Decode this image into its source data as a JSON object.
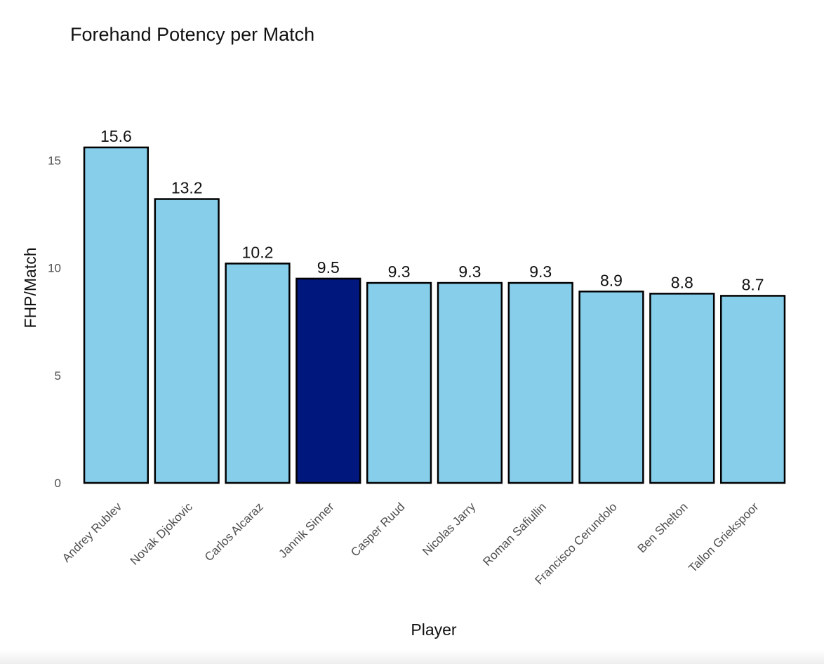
{
  "chart_data": {
    "type": "bar",
    "title": "Forehand Potency per Match",
    "xlabel": "Player",
    "ylabel": "FHP/Match",
    "ylim": [
      0,
      16.5
    ],
    "yticks": [
      0,
      5,
      10,
      15
    ],
    "grid": false,
    "legend": "none",
    "categories": [
      "Andrey Rublev",
      "Novak Djokovic",
      "Carlos Alcaraz",
      "Jannik Sinner",
      "Casper Ruud",
      "Nicolas Jarry",
      "Roman Safiullin",
      "Francisco Cerundolo",
      "Ben Shelton",
      "Tallon Griekspoor"
    ],
    "values": [
      15.6,
      13.2,
      10.2,
      9.5,
      9.3,
      9.3,
      9.3,
      8.9,
      8.8,
      8.7
    ],
    "value_labels": [
      "15.6",
      "13.2",
      "10.2",
      "9.5",
      "9.3",
      "9.3",
      "9.3",
      "8.9",
      "8.8",
      "8.7"
    ],
    "highlight": "Jannik Sinner",
    "colors": {
      "bar": "#87CEEB",
      "highlight": "#00177D",
      "outline": "#000000"
    }
  }
}
